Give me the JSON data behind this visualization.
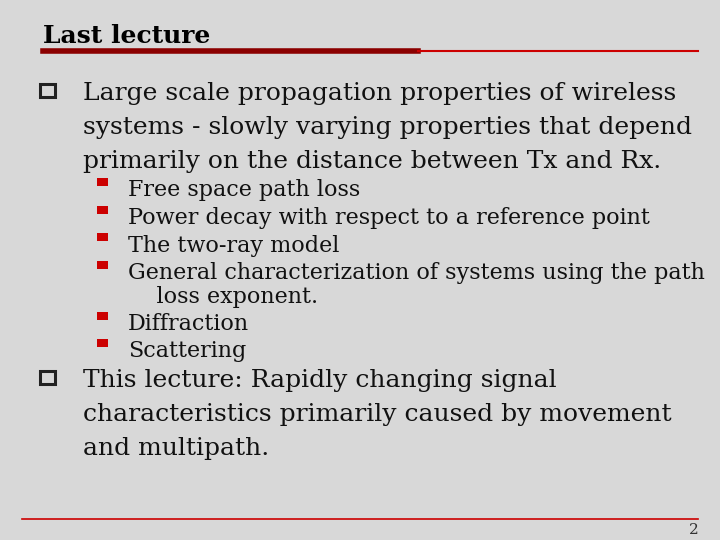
{
  "title": "Last lecture",
  "title_color": "#000000",
  "title_fontsize": 18,
  "background_color": "#d8d8d8",
  "accent_color_dark": "#8b0000",
  "accent_color_red": "#cc0000",
  "bullet1_text_line1": "Large scale propagation properties of wireless",
  "bullet1_text_line2": "systems - slowly varying properties that depend",
  "bullet1_text_line3": "primarily on the distance between Tx and Rx.",
  "sub_bullets": [
    "Free space path loss",
    "Power decay with respect to a reference point",
    "The two-ray model",
    "General characterization of systems using the path",
    "    loss exponent.",
    "Diffraction",
    "Scattering"
  ],
  "sub_bullet_has_square": [
    true,
    true,
    true,
    true,
    false,
    true,
    true
  ],
  "bullet2_text_line1": "This lecture: Rapidly changing signal",
  "bullet2_text_line2": "characteristics primarily caused by movement",
  "bullet2_text_line3": "and multipath.",
  "page_number": "2",
  "font_family": "serif",
  "main_bullet_fontsize": 18,
  "sub_bullet_fontsize": 16
}
